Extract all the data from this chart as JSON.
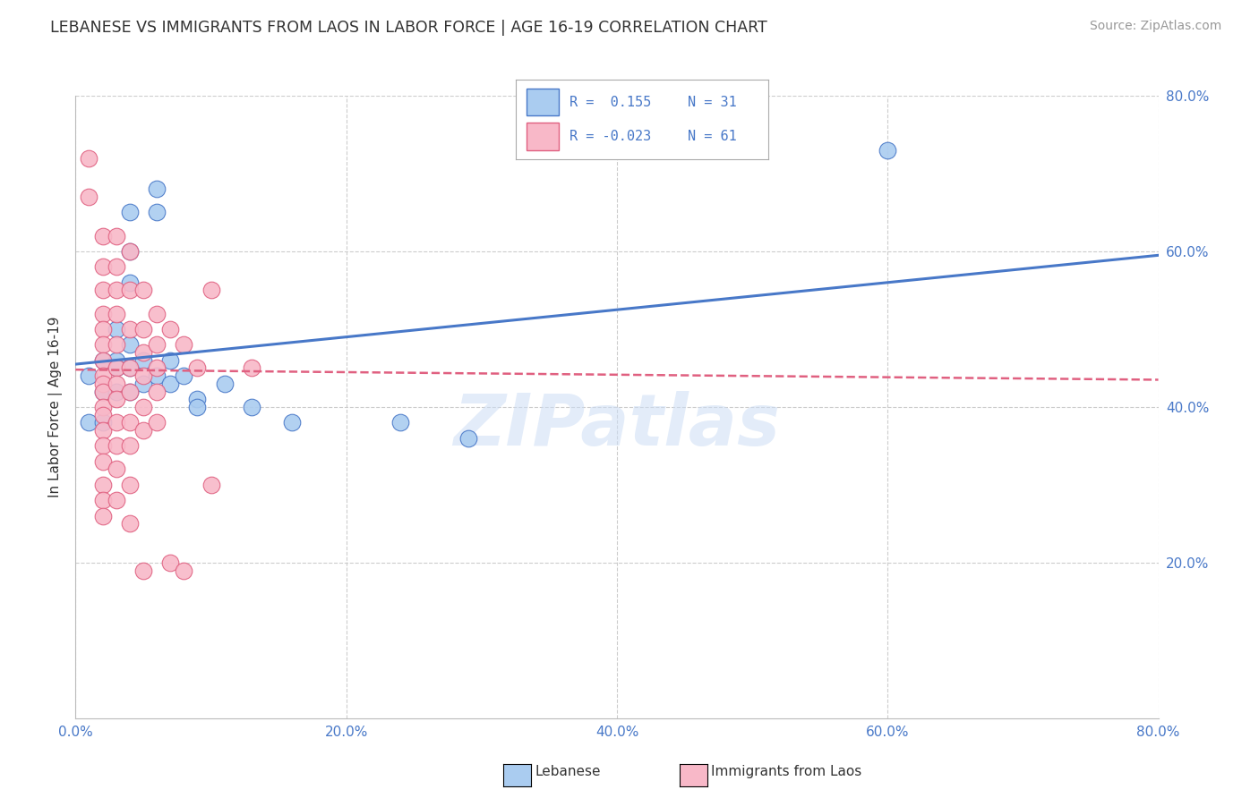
{
  "title": "LEBANESE VS IMMIGRANTS FROM LAOS IN LABOR FORCE | AGE 16-19 CORRELATION CHART",
  "source": "Source: ZipAtlas.com",
  "ylabel": "In Labor Force | Age 16-19",
  "xlim": [
    0.0,
    0.8
  ],
  "ylim": [
    0.0,
    0.8
  ],
  "xticks": [
    0.0,
    0.2,
    0.4,
    0.6,
    0.8
  ],
  "yticks": [
    0.2,
    0.4,
    0.6,
    0.8
  ],
  "xticklabels": [
    "0.0%",
    "20.0%",
    "40.0%",
    "60.0%",
    "80.0%"
  ],
  "yticklabels": [
    "20.0%",
    "40.0%",
    "60.0%",
    "80.0%"
  ],
  "grid_color": "#cccccc",
  "background_color": "#ffffff",
  "legend_R1": "R =  0.155",
  "legend_N1": "N = 31",
  "legend_R2": "R = -0.023",
  "legend_N2": "N = 61",
  "color_blue": "#aaccf0",
  "color_pink": "#f8b8c8",
  "line_blue": "#4878c8",
  "line_pink": "#e06080",
  "watermark": "ZIPatlas",
  "blue_line": [
    0.0,
    0.455,
    0.8,
    0.595
  ],
  "pink_line": [
    0.0,
    0.448,
    0.8,
    0.435
  ],
  "blue_points": [
    [
      0.01,
      0.44
    ],
    [
      0.01,
      0.38
    ],
    [
      0.02,
      0.46
    ],
    [
      0.02,
      0.42
    ],
    [
      0.02,
      0.38
    ],
    [
      0.03,
      0.5
    ],
    [
      0.03,
      0.46
    ],
    [
      0.03,
      0.45
    ],
    [
      0.03,
      0.42
    ],
    [
      0.04,
      0.65
    ],
    [
      0.04,
      0.6
    ],
    [
      0.04,
      0.56
    ],
    [
      0.04,
      0.48
    ],
    [
      0.04,
      0.45
    ],
    [
      0.04,
      0.42
    ],
    [
      0.05,
      0.46
    ],
    [
      0.05,
      0.43
    ],
    [
      0.06,
      0.68
    ],
    [
      0.06,
      0.65
    ],
    [
      0.06,
      0.44
    ],
    [
      0.07,
      0.46
    ],
    [
      0.07,
      0.43
    ],
    [
      0.08,
      0.44
    ],
    [
      0.09,
      0.41
    ],
    [
      0.09,
      0.4
    ],
    [
      0.11,
      0.43
    ],
    [
      0.13,
      0.4
    ],
    [
      0.16,
      0.38
    ],
    [
      0.24,
      0.38
    ],
    [
      0.29,
      0.36
    ],
    [
      0.6,
      0.73
    ]
  ],
  "pink_points": [
    [
      0.01,
      0.72
    ],
    [
      0.01,
      0.67
    ],
    [
      0.02,
      0.62
    ],
    [
      0.02,
      0.58
    ],
    [
      0.02,
      0.55
    ],
    [
      0.02,
      0.52
    ],
    [
      0.02,
      0.5
    ],
    [
      0.02,
      0.48
    ],
    [
      0.02,
      0.46
    ],
    [
      0.02,
      0.44
    ],
    [
      0.02,
      0.43
    ],
    [
      0.02,
      0.42
    ],
    [
      0.02,
      0.4
    ],
    [
      0.02,
      0.39
    ],
    [
      0.02,
      0.37
    ],
    [
      0.02,
      0.35
    ],
    [
      0.02,
      0.33
    ],
    [
      0.02,
      0.3
    ],
    [
      0.02,
      0.28
    ],
    [
      0.02,
      0.26
    ],
    [
      0.03,
      0.62
    ],
    [
      0.03,
      0.58
    ],
    [
      0.03,
      0.55
    ],
    [
      0.03,
      0.52
    ],
    [
      0.03,
      0.48
    ],
    [
      0.03,
      0.45
    ],
    [
      0.03,
      0.43
    ],
    [
      0.03,
      0.41
    ],
    [
      0.03,
      0.38
    ],
    [
      0.03,
      0.35
    ],
    [
      0.03,
      0.32
    ],
    [
      0.03,
      0.28
    ],
    [
      0.04,
      0.6
    ],
    [
      0.04,
      0.55
    ],
    [
      0.04,
      0.5
    ],
    [
      0.04,
      0.45
    ],
    [
      0.04,
      0.42
    ],
    [
      0.04,
      0.38
    ],
    [
      0.04,
      0.35
    ],
    [
      0.04,
      0.3
    ],
    [
      0.04,
      0.25
    ],
    [
      0.05,
      0.55
    ],
    [
      0.05,
      0.5
    ],
    [
      0.05,
      0.47
    ],
    [
      0.05,
      0.44
    ],
    [
      0.05,
      0.4
    ],
    [
      0.05,
      0.37
    ],
    [
      0.05,
      0.19
    ],
    [
      0.06,
      0.52
    ],
    [
      0.06,
      0.48
    ],
    [
      0.06,
      0.45
    ],
    [
      0.06,
      0.42
    ],
    [
      0.06,
      0.38
    ],
    [
      0.07,
      0.5
    ],
    [
      0.07,
      0.2
    ],
    [
      0.08,
      0.48
    ],
    [
      0.08,
      0.19
    ],
    [
      0.09,
      0.45
    ],
    [
      0.1,
      0.55
    ],
    [
      0.1,
      0.3
    ],
    [
      0.13,
      0.45
    ]
  ]
}
